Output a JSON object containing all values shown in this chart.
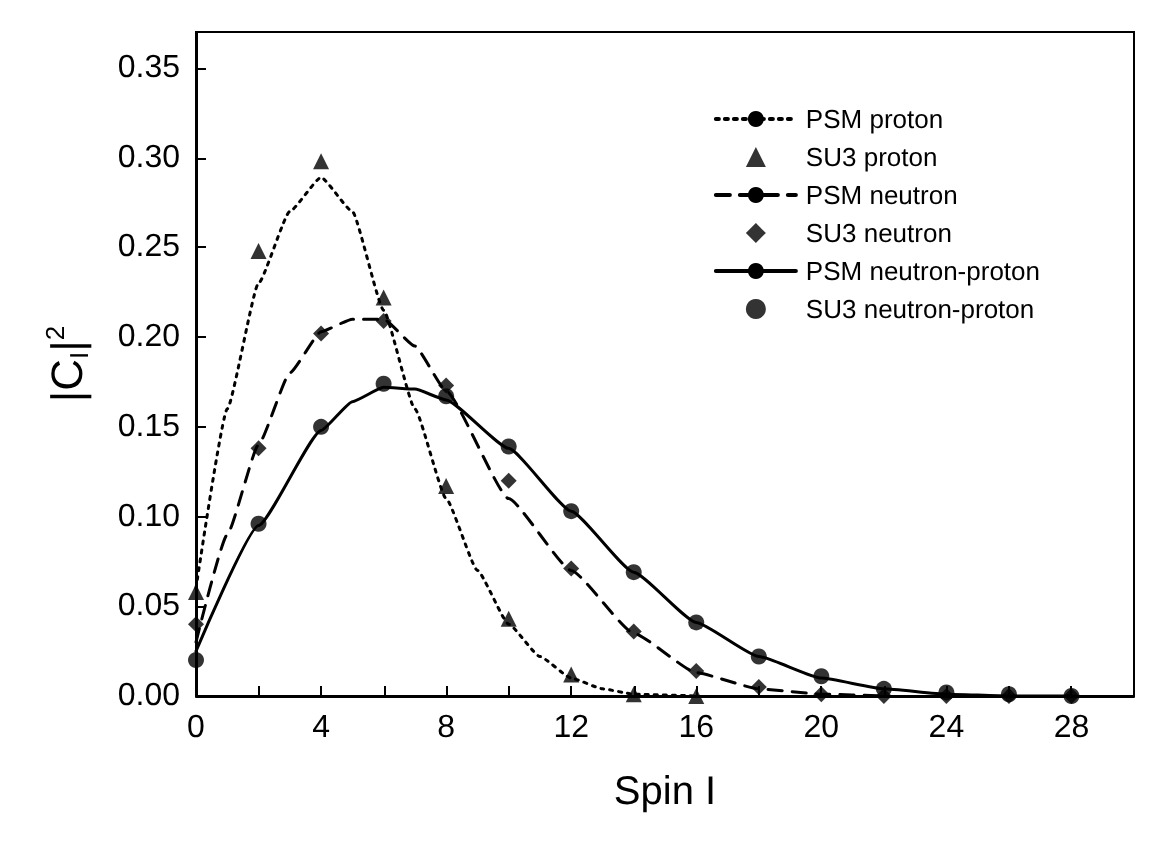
{
  "chart_data": {
    "type": "line",
    "xlabel": "Spin I",
    "ylabel": "|C$_{I}$|$^{2}$",
    "xlim": [
      0,
      30
    ],
    "ylim": [
      0,
      0.37
    ],
    "xticks": [
      0,
      {
        "value": 2,
        "label": null
      },
      4,
      {
        "value": 6,
        "label": null
      },
      8,
      {
        "value": 10,
        "label": null
      },
      12,
      {
        "value": 14,
        "label": null
      },
      16,
      {
        "value": 18,
        "label": null
      },
      20,
      {
        "value": 22,
        "label": null
      },
      24,
      {
        "value": 26,
        "label": null
      },
      28
    ],
    "yticks": [
      {
        "value": 0,
        "label": "0.00"
      },
      {
        "value": 0.05,
        "label": "0.05"
      },
      {
        "value": 0.1,
        "label": "0.10"
      },
      {
        "value": 0.15,
        "label": "0.15"
      },
      {
        "value": 0.2,
        "label": "0.20"
      },
      {
        "value": 0.25,
        "label": "0.25"
      },
      {
        "value": 0.3,
        "label": "0.30"
      },
      {
        "value": 0.35,
        "label": "0.35"
      }
    ],
    "grid": false,
    "legend": "top right",
    "series": [
      {
        "name": "PSM proton",
        "type": "line",
        "line_style": "dotted",
        "marker": "none",
        "color": "#000000",
        "x": [
          0,
          1,
          2,
          3,
          4,
          5,
          6,
          7,
          8,
          9,
          10,
          11,
          12,
          13,
          14,
          16
        ],
        "values": [
          0.06,
          0.16,
          0.23,
          0.27,
          0.289,
          0.27,
          0.215,
          0.16,
          0.11,
          0.07,
          0.04,
          0.022,
          0.01,
          0.004,
          0.001,
          0
        ]
      },
      {
        "name": "SU3 proton",
        "type": "scatter",
        "marker": "triangle",
        "color": "#000000",
        "x": [
          0,
          2,
          4,
          6,
          8,
          10,
          12,
          14,
          16
        ],
        "values": [
          0.058,
          0.248,
          0.298,
          0.222,
          0.117,
          0.043,
          0.012,
          0.001,
          0
        ]
      },
      {
        "name": "PSM neutron",
        "type": "line",
        "line_style": "dashed",
        "marker": "none",
        "color": "#000000",
        "x": [
          0,
          1,
          2,
          3,
          4,
          5,
          6,
          7,
          8,
          10,
          12,
          14,
          16,
          18,
          20,
          22
        ],
        "values": [
          0.03,
          0.09,
          0.14,
          0.18,
          0.203,
          0.21,
          0.21,
          0.195,
          0.17,
          0.11,
          0.07,
          0.035,
          0.013,
          0.004,
          0.001,
          0
        ]
      },
      {
        "name": "SU3 neutron",
        "type": "scatter",
        "marker": "diamond",
        "color": "#000000",
        "x": [
          0,
          2,
          4,
          6,
          8,
          10,
          12,
          14,
          16,
          18,
          20,
          22,
          24,
          26,
          28
        ],
        "values": [
          0.04,
          0.138,
          0.202,
          0.209,
          0.173,
          0.12,
          0.071,
          0.036,
          0.014,
          0.005,
          0.001,
          0,
          0,
          0,
          0
        ]
      },
      {
        "name": "PSM neutron-proton",
        "type": "line",
        "line_style": "solid",
        "marker": "none",
        "color": "#000000",
        "x": [
          0,
          2,
          4,
          5,
          6,
          7,
          8,
          10,
          12,
          14,
          16,
          18,
          20,
          22,
          24,
          26,
          28
        ],
        "values": [
          0.025,
          0.095,
          0.148,
          0.164,
          0.172,
          0.171,
          0.165,
          0.138,
          0.103,
          0.069,
          0.041,
          0.022,
          0.01,
          0.004,
          0.001,
          0,
          0
        ]
      },
      {
        "name": "SU3 neutron-proton",
        "type": "scatter",
        "marker": "circle",
        "color": "#000000",
        "x": [
          0,
          2,
          4,
          6,
          8,
          10,
          12,
          14,
          16,
          18,
          20,
          22,
          24,
          26,
          28
        ],
        "values": [
          0.02,
          0.096,
          0.15,
          0.174,
          0.167,
          0.139,
          0.103,
          0.069,
          0.041,
          0.022,
          0.011,
          0.004,
          0.002,
          0.001,
          0
        ]
      }
    ]
  }
}
